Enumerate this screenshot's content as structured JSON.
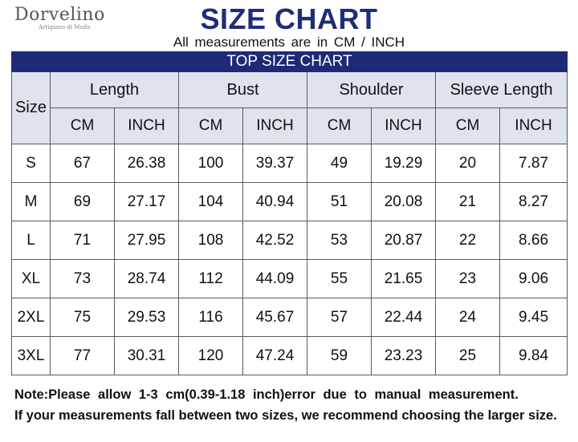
{
  "brand": {
    "name": "Dorvelino",
    "tagline": "Artigiano di Moda"
  },
  "title": "SIZE CHART",
  "subtitle": "All measurements are in CM / INCH",
  "table": {
    "banner": "TOP SIZE CHART",
    "size_header": "Size",
    "groups": [
      "Length",
      "Bust",
      "Shoulder",
      "Sleeve Length"
    ],
    "units": [
      "CM",
      "INCH"
    ],
    "rows": [
      {
        "size": "S",
        "values": [
          "67",
          "26.38",
          "100",
          "39.37",
          "49",
          "19.29",
          "20",
          "7.87"
        ]
      },
      {
        "size": "M",
        "values": [
          "69",
          "27.17",
          "104",
          "40.94",
          "51",
          "20.08",
          "21",
          "8.27"
        ]
      },
      {
        "size": "L",
        "values": [
          "71",
          "27.95",
          "108",
          "42.52",
          "53",
          "20.87",
          "22",
          "8.66"
        ]
      },
      {
        "size": "XL",
        "values": [
          "73",
          "28.74",
          "112",
          "44.09",
          "55",
          "21.65",
          "23",
          "9.06"
        ]
      },
      {
        "size": "2XL",
        "values": [
          "75",
          "29.53",
          "116",
          "45.67",
          "57",
          "22.44",
          "24",
          "9.45"
        ]
      },
      {
        "size": "3XL",
        "values": [
          "77",
          "30.31",
          "120",
          "47.24",
          "59",
          "23.23",
          "25",
          "9.84"
        ]
      }
    ]
  },
  "note": {
    "line1": "Note:Please allow 1-3 cm(0.39-1.18 inch)error due to manual measurement.",
    "line2": "If your measurements fall between two sizes, we recommend choosing the larger size."
  },
  "colors": {
    "title": "#1f2d77",
    "banner": "#1e2a78",
    "header_fill": "#dfe3ee"
  }
}
